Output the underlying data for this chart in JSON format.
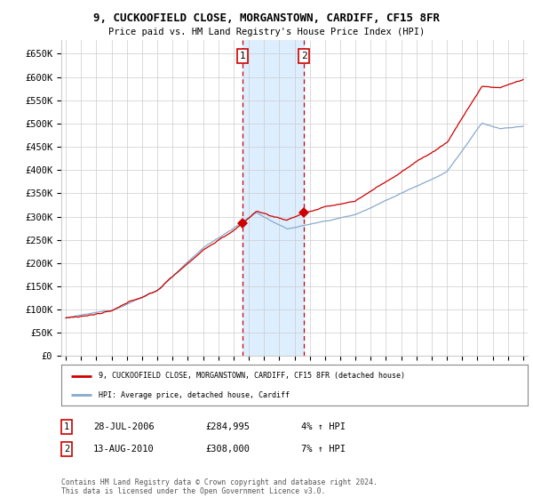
{
  "title": "9, CUCKOOFIELD CLOSE, MORGANSTOWN, CARDIFF, CF15 8FR",
  "subtitle": "Price paid vs. HM Land Registry's House Price Index (HPI)",
  "ylim": [
    0,
    680000
  ],
  "yticks": [
    0,
    50000,
    100000,
    150000,
    200000,
    250000,
    300000,
    350000,
    400000,
    450000,
    500000,
    550000,
    600000,
    650000
  ],
  "sale1_date": "28-JUL-2006",
  "sale1_price": 284995,
  "sale1_year": 2006.58,
  "sale1_pct": "4% ↑ HPI",
  "sale2_date": "13-AUG-2010",
  "sale2_price": 308000,
  "sale2_year": 2010.62,
  "sale2_pct": "7% ↑ HPI",
  "legend_label1": "9, CUCKOOFIELD CLOSE, MORGANSTOWN, CARDIFF, CF15 8FR (detached house)",
  "legend_label2": "HPI: Average price, detached house, Cardiff",
  "footer": "Contains HM Land Registry data © Crown copyright and database right 2024.\nThis data is licensed under the Open Government Licence v3.0.",
  "line_color_house": "#cc0000",
  "line_color_hpi": "#88aacc",
  "grid_color": "#cccccc",
  "bg_color": "#ffffff",
  "shade_color": "#ddeeff",
  "xlim_left": 1994.7,
  "xlim_right": 2025.3
}
